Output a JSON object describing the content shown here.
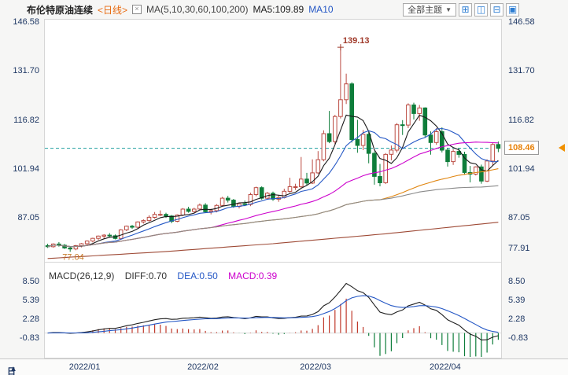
{
  "header": {
    "symbol": "布伦特原油连续",
    "period_tag": "<日线>",
    "ma_settings_glyph": "×",
    "ma_label": "MA(5,10,30,60,100,200)",
    "ma5_label": "MA5:109.89",
    "ma10_label": "MA10",
    "theme_dropdown": "全部主题",
    "theme_caret": "▼",
    "layout_icons": [
      "⊞",
      "◫",
      "⊟",
      "▣"
    ]
  },
  "price_tag": {
    "value": "108.46"
  },
  "macd_legend": {
    "title": "MACD(26,12,9)",
    "diff": "DIFF:0.70",
    "dea": "DEA:0.50",
    "macd": "MACD:0.39"
  },
  "bottom": {
    "tab": "日线",
    "arrow": "▲"
  },
  "colors": {
    "up": "#bb4b42",
    "down": "#0e7d3a",
    "hist_up": "#c0392b",
    "hist_down": "#0e7d3a",
    "ma5": "#1a1a1a",
    "ma10": "#2457c5",
    "ma30": "#cc00cc",
    "ma60": "#e0850f",
    "ma100": "#8a8a8a",
    "ma200": "#9e4a36",
    "diff_line": "#202020",
    "dea_line": "#2457c5",
    "last_price_line": "#1f9e9e",
    "annotation_high": "#a03a2a",
    "annotation_low": "#c77b29",
    "accent_orange": "#e8820a",
    "axis_text": "#1f3864"
  },
  "chart_data": {
    "type": "candlestick",
    "title": "布伦特原油连续 <日线>",
    "indicators": [
      "MA(5,10,30,60,100,200)",
      "MACD(26,12,9)"
    ],
    "last_price": 108.46,
    "macd_values": {
      "diff": 0.7,
      "dea": 0.5,
      "macd": 0.39
    },
    "price_axis_ticks_left": [
      146.58,
      131.7,
      116.82,
      101.94,
      87.05
    ],
    "price_axis_ticks_right": [
      146.58,
      131.7,
      116.82,
      101.94,
      87.05,
      77.91
    ],
    "macd_axis_ticks": [
      8.5,
      5.39,
      2.28,
      -0.83
    ],
    "x_labels": [
      "2022/01",
      "2022/02",
      "2022/03",
      "2022/04"
    ],
    "price_range": [
      74,
      147.5
    ],
    "macd_range": [
      -3.94,
      11.61
    ],
    "high_annotation": {
      "value": 139.13,
      "index": 52
    },
    "low_annotation": {
      "value": 77.04,
      "index": 4
    },
    "ma_periods": [
      5,
      10,
      30,
      60,
      100,
      200
    ],
    "ma200_anchors": [
      [
        0,
        75.0
      ],
      [
        20,
        77.0
      ],
      [
        40,
        79.5
      ],
      [
        60,
        82.5
      ],
      [
        80,
        86.0
      ]
    ],
    "candles": [
      [
        "2021/12/22",
        78.9,
        79.5,
        78.2,
        78.6
      ],
      [
        "2021/12/23",
        78.6,
        79.6,
        78.3,
        79.4
      ],
      [
        "2021/12/27",
        79.4,
        80.0,
        78.6,
        79.0
      ],
      [
        "2021/12/28",
        79.0,
        79.4,
        77.9,
        78.2
      ],
      [
        "2021/12/29",
        78.2,
        78.6,
        77.04,
        77.9
      ],
      [
        "2021/12/30",
        77.9,
        79.1,
        77.5,
        78.9
      ],
      [
        "2021/12/31",
        78.9,
        79.7,
        78.4,
        79.5
      ],
      [
        "2022/01/03",
        79.5,
        80.5,
        79.1,
        80.3
      ],
      [
        "2022/01/04",
        80.3,
        81.3,
        79.9,
        81.1
      ],
      [
        "2022/01/05",
        81.1,
        82.0,
        80.6,
        81.8
      ],
      [
        "2022/01/06",
        81.8,
        82.4,
        80.9,
        82.1
      ],
      [
        "2022/01/07",
        82.1,
        82.7,
        81.3,
        81.9
      ],
      [
        "2022/01/10",
        81.9,
        82.3,
        80.8,
        81.1
      ],
      [
        "2022/01/11",
        81.1,
        83.9,
        80.9,
        83.7
      ],
      [
        "2022/01/12",
        83.7,
        85.0,
        83.3,
        84.8
      ],
      [
        "2022/01/13",
        84.8,
        85.2,
        84.0,
        84.5
      ],
      [
        "2022/01/14",
        84.5,
        86.3,
        84.2,
        86.1
      ],
      [
        "2022/01/17",
        86.1,
        86.9,
        85.6,
        86.5
      ],
      [
        "2022/01/18",
        86.5,
        88.1,
        86.2,
        87.5
      ],
      [
        "2022/01/19",
        87.5,
        89.1,
        87.1,
        88.4
      ],
      [
        "2022/01/20",
        88.4,
        89.6,
        87.9,
        88.4
      ],
      [
        "2022/01/21",
        88.4,
        88.9,
        87.3,
        87.9
      ],
      [
        "2022/01/24",
        87.9,
        88.2,
        85.7,
        86.3
      ],
      [
        "2022/01/25",
        86.3,
        88.4,
        86.0,
        88.2
      ],
      [
        "2022/01/26",
        88.2,
        90.3,
        87.9,
        90.0
      ],
      [
        "2022/01/27",
        90.0,
        90.7,
        88.9,
        89.3
      ],
      [
        "2022/01/28",
        89.3,
        90.4,
        88.8,
        90.0
      ],
      [
        "2022/01/31",
        90.0,
        91.7,
        89.6,
        91.2
      ],
      [
        "2022/02/01",
        91.2,
        91.8,
        88.9,
        89.2
      ],
      [
        "2022/02/02",
        89.2,
        90.1,
        88.4,
        89.5
      ],
      [
        "2022/02/03",
        89.5,
        91.5,
        89.0,
        91.1
      ],
      [
        "2022/02/04",
        91.1,
        93.7,
        90.8,
        93.3
      ],
      [
        "2022/02/07",
        93.3,
        94.0,
        92.0,
        92.7
      ],
      [
        "2022/02/08",
        92.7,
        93.1,
        90.4,
        90.8
      ],
      [
        "2022/02/09",
        90.8,
        92.0,
        90.2,
        91.6
      ],
      [
        "2022/02/10",
        91.6,
        92.6,
        90.9,
        91.4
      ],
      [
        "2022/02/11",
        91.4,
        95.0,
        90.9,
        94.4
      ],
      [
        "2022/02/14",
        94.4,
        96.8,
        93.9,
        96.5
      ],
      [
        "2022/02/15",
        96.5,
        96.9,
        92.8,
        93.3
      ],
      [
        "2022/02/16",
        93.3,
        95.2,
        92.9,
        94.8
      ],
      [
        "2022/02/17",
        94.8,
        95.3,
        92.5,
        93.0
      ],
      [
        "2022/02/18",
        93.0,
        94.2,
        92.2,
        93.5
      ],
      [
        "2022/02/21",
        93.5,
        96.2,
        93.2,
        95.4
      ],
      [
        "2022/02/22",
        95.4,
        99.5,
        95.0,
        96.8
      ],
      [
        "2022/02/23",
        96.8,
        97.7,
        95.8,
        96.8
      ],
      [
        "2022/02/24",
        96.8,
        105.8,
        96.4,
        99.1
      ],
      [
        "2022/02/25",
        99.1,
        101.0,
        97.2,
        97.9
      ],
      [
        "2022/02/28",
        97.9,
        105.1,
        97.6,
        101.0
      ],
      [
        "2022/03/01",
        101.0,
        107.6,
        100.6,
        105.0
      ],
      [
        "2022/03/02",
        105.0,
        113.9,
        104.5,
        112.9
      ],
      [
        "2022/03/03",
        112.9,
        119.8,
        110.0,
        110.5
      ],
      [
        "2022/03/04",
        110.5,
        118.6,
        109.8,
        118.1
      ],
      [
        "2022/03/07",
        118.1,
        139.13,
        117.5,
        123.2
      ],
      [
        "2022/03/08",
        123.2,
        131.1,
        121.9,
        128.0
      ],
      [
        "2022/03/09",
        128.0,
        128.5,
        110.2,
        111.1
      ],
      [
        "2022/03/10",
        111.1,
        117.1,
        107.1,
        109.3
      ],
      [
        "2022/03/11",
        109.3,
        114.0,
        107.9,
        112.7
      ],
      [
        "2022/03/14",
        112.7,
        113.4,
        103.9,
        106.9
      ],
      [
        "2022/03/15",
        106.9,
        107.5,
        97.4,
        99.9
      ],
      [
        "2022/03/16",
        99.9,
        103.7,
        96.9,
        98.0
      ],
      [
        "2022/03/17",
        98.0,
        107.0,
        97.6,
        106.6
      ],
      [
        "2022/03/18",
        106.6,
        109.3,
        104.8,
        107.9
      ],
      [
        "2022/03/21",
        107.9,
        116.1,
        107.2,
        115.6
      ],
      [
        "2022/03/22",
        115.6,
        117.0,
        112.5,
        115.5
      ],
      [
        "2022/03/23",
        115.5,
        122.1,
        114.6,
        121.6
      ],
      [
        "2022/03/24",
        121.6,
        122.3,
        117.2,
        119.0
      ],
      [
        "2022/03/25",
        119.0,
        121.6,
        116.8,
        120.7
      ],
      [
        "2022/03/28",
        120.7,
        120.9,
        111.7,
        112.5
      ],
      [
        "2022/03/29",
        112.5,
        113.6,
        106.5,
        110.2
      ],
      [
        "2022/03/30",
        110.2,
        114.6,
        109.5,
        113.5
      ],
      [
        "2022/03/31",
        113.5,
        114.8,
        107.2,
        107.9
      ],
      [
        "2022/04/01",
        107.9,
        108.6,
        102.9,
        104.4
      ],
      [
        "2022/04/04",
        104.4,
        108.2,
        103.4,
        107.5
      ],
      [
        "2022/04/05",
        107.5,
        108.5,
        105.6,
        106.6
      ],
      [
        "2022/04/06",
        106.6,
        107.4,
        100.4,
        101.1
      ],
      [
        "2022/04/07",
        101.1,
        103.1,
        98.1,
        100.6
      ],
      [
        "2022/04/08",
        100.6,
        103.0,
        100.2,
        102.8
      ],
      [
        "2022/04/11",
        102.8,
        103.5,
        97.7,
        98.5
      ],
      [
        "2022/04/12",
        98.5,
        105.1,
        98.2,
        104.6
      ],
      [
        "2022/04/13",
        104.6,
        110.2,
        103.2,
        109.6
      ],
      [
        "2022/04/14",
        109.6,
        110.5,
        107.3,
        108.46
      ]
    ]
  }
}
